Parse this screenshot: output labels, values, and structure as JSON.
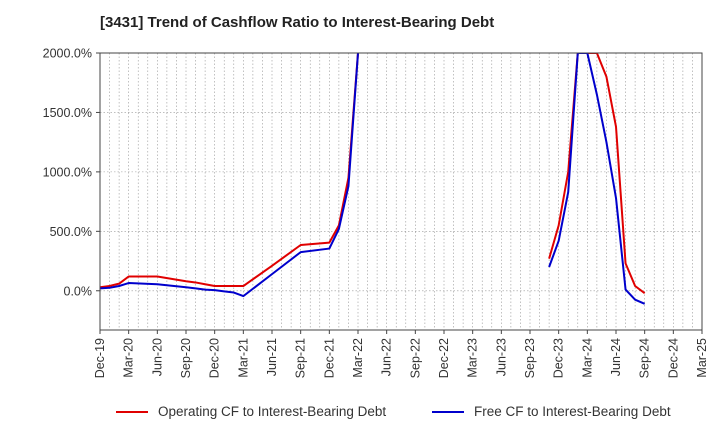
{
  "chart_data": {
    "type": "line",
    "title": "[3431]  Trend of Cashflow Ratio to Interest-Bearing Debt",
    "ylim": [
      -330,
      2000
    ],
    "yticks": [
      0,
      500,
      1000,
      1500,
      2000
    ],
    "ytick_labels": [
      "0.0%",
      "500.0%",
      "1000.0%",
      "1500.0%",
      "2000.0%"
    ],
    "x_tick_labels": [
      "Dec-19",
      "Mar-20",
      "Jun-20",
      "Sep-20",
      "Dec-20",
      "Mar-21",
      "Jun-21",
      "Sep-21",
      "Dec-21",
      "Mar-22",
      "Jun-22",
      "Sep-22",
      "Dec-22",
      "Mar-23",
      "Jun-23",
      "Sep-23",
      "Dec-23",
      "Mar-24",
      "Jun-24",
      "Sep-24",
      "Dec-24",
      "Mar-25"
    ],
    "grid": true,
    "legend_placement": "bottom",
    "series": [
      {
        "name": "Operating CF to Interest-Bearing Debt",
        "color": "#e00000",
        "points": [
          [
            "Dec-19",
            30
          ],
          [
            "Jan-20",
            40
          ],
          [
            "Feb-20",
            60
          ],
          [
            "Mar-20",
            120
          ],
          [
            "Jun-20",
            120
          ],
          [
            "Sep-20",
            80
          ],
          [
            "Oct-20",
            70
          ],
          [
            "Nov-20",
            55
          ],
          [
            "Dec-20",
            40
          ],
          [
            "Mar-21",
            40
          ],
          [
            "Jun-21",
            210
          ],
          [
            "Sep-21",
            385
          ],
          [
            "Dec-21",
            405
          ],
          [
            "Jan-22",
            550
          ],
          [
            "Feb-22",
            950
          ],
          [
            "Mar-22",
            2000
          ],
          [
            "Nov-23",
            270
          ],
          [
            "Dec-23",
            550
          ],
          [
            "Jan-24",
            1000
          ],
          [
            "Feb-24",
            2000
          ],
          [
            "Apr-24",
            2000
          ],
          [
            "May-24",
            1800
          ],
          [
            "Jun-24",
            1380
          ],
          [
            "Jul-24",
            230
          ],
          [
            "Aug-24",
            40
          ],
          [
            "Sep-24",
            -20
          ]
        ]
      },
      {
        "name": "Free CF to Interest-Bearing Debt",
        "color": "#0000cc",
        "points": [
          [
            "Dec-19",
            20
          ],
          [
            "Jan-20",
            25
          ],
          [
            "Feb-20",
            40
          ],
          [
            "Mar-20",
            65
          ],
          [
            "Jun-20",
            55
          ],
          [
            "Sep-20",
            30
          ],
          [
            "Oct-20",
            20
          ],
          [
            "Nov-20",
            10
          ],
          [
            "Dec-20",
            5
          ],
          [
            "Jan-21",
            -5
          ],
          [
            "Feb-21",
            -15
          ],
          [
            "Mar-21",
            -45
          ],
          [
            "Jun-21",
            140
          ],
          [
            "Sep-21",
            325
          ],
          [
            "Dec-21",
            355
          ],
          [
            "Jan-22",
            520
          ],
          [
            "Feb-22",
            880
          ],
          [
            "Mar-22",
            2000
          ],
          [
            "Nov-23",
            200
          ],
          [
            "Dec-23",
            420
          ],
          [
            "Jan-24",
            830
          ],
          [
            "Feb-24",
            2000
          ],
          [
            "Mar-24",
            2000
          ],
          [
            "Apr-24",
            1650
          ],
          [
            "May-24",
            1250
          ],
          [
            "Jun-24",
            780
          ],
          [
            "Jul-24",
            10
          ],
          [
            "Aug-24",
            -75
          ],
          [
            "Sep-24",
            -110
          ]
        ]
      }
    ]
  }
}
